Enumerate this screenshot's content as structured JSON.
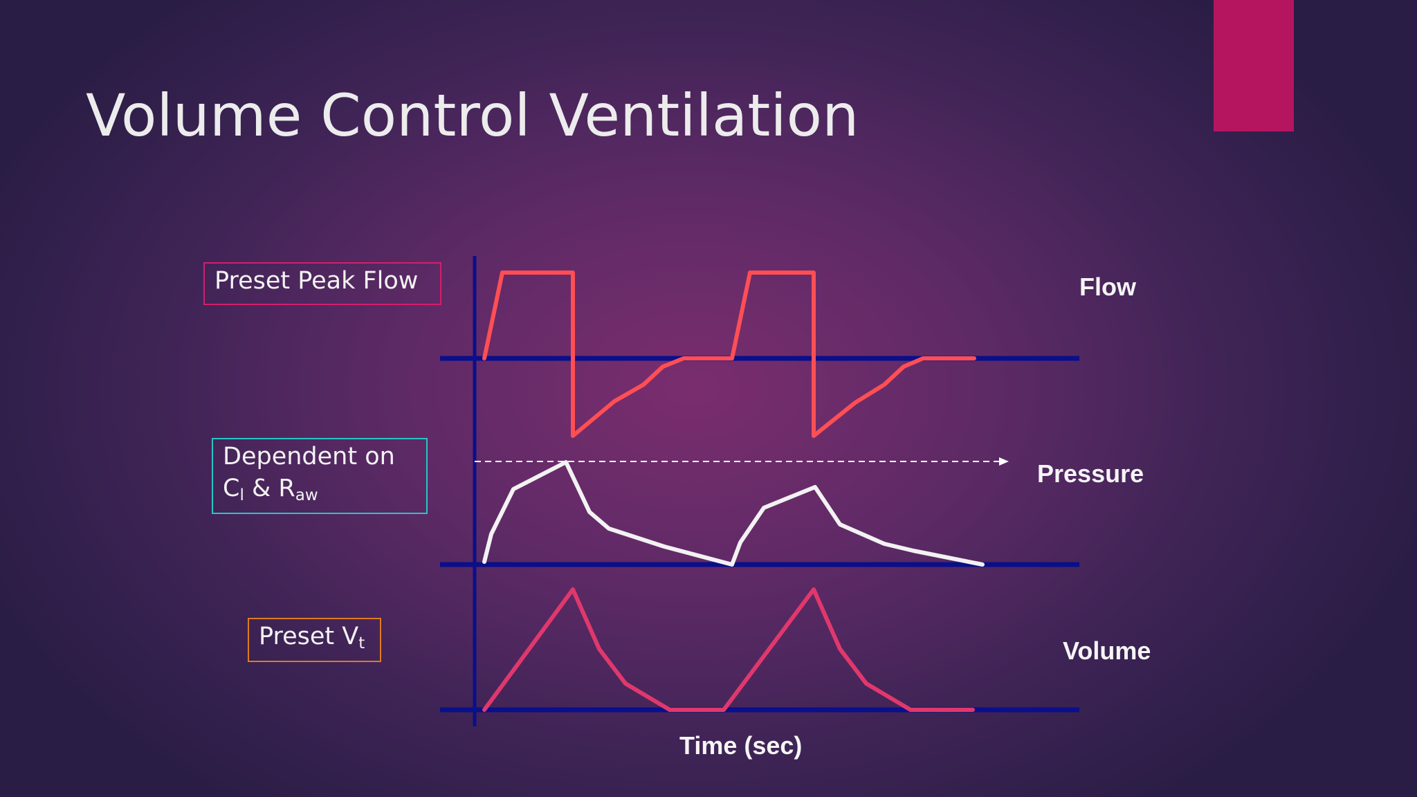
{
  "slide": {
    "title": "Volume Control Ventilation",
    "accent_color": "#b5155f"
  },
  "annotations": {
    "flow_note": "Preset Peak Flow",
    "pressure_note_line1": "Dependent on",
    "pressure_note_c": "C",
    "pressure_note_c_sub": "l",
    "pressure_note_and": " & R",
    "pressure_note_r_sub": "aw",
    "volume_note": "Preset V",
    "volume_note_sub": "t"
  },
  "traces": {
    "flow_label": "Flow",
    "pressure_label": "Pressure",
    "volume_label": "Volume",
    "time_axis_label": "Time (sec)"
  },
  "colors": {
    "axis": "#0a0f8a",
    "flow": "#ff4f55",
    "pressure": "#f2f2f2",
    "volume": "#e0386d",
    "dashed_reference": "#ffffff"
  }
}
